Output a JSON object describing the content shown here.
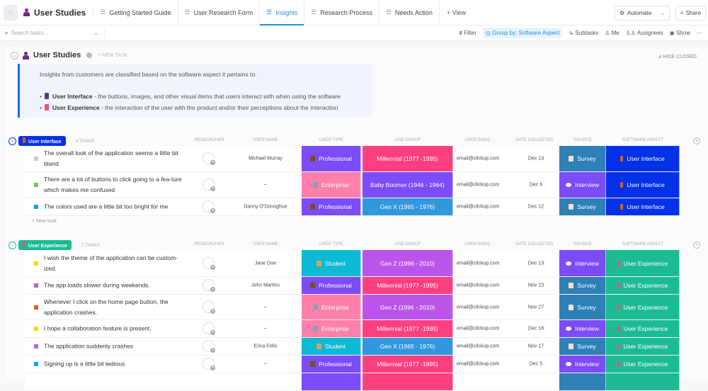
{
  "topbar": {
    "space_name": "User Studies",
    "tabs": [
      {
        "label": "Getting Started Guide",
        "icon": "doc-icon"
      },
      {
        "label": "User Research Form",
        "icon": "form-icon"
      },
      {
        "label": "Insights",
        "icon": "list-icon",
        "active": true
      },
      {
        "label": "Research Process",
        "icon": "board-icon"
      },
      {
        "label": "Needs Action",
        "icon": "list-icon"
      }
    ],
    "add_view": "+ View",
    "automate": "Automate",
    "share": "Share"
  },
  "toolbar": {
    "search_placeholder": "Search tasks...",
    "filter": "Filter",
    "group_by": "Group by: Software Aspect",
    "subtasks": "Subtasks",
    "me": "Me",
    "assignees": "Assignees",
    "show": "Show",
    "more": "···"
  },
  "list": {
    "title": "User Studies",
    "new_task": "+ NEW TASK",
    "hide_closed": "HIDE CLOSED",
    "description": {
      "intro": "Insights from customers are classified based on the software aspect it pertains to.",
      "items": [
        {
          "term": "User Interface",
          "text": " - the buttons, images, and other visual items that users interact with when using the software"
        },
        {
          "term": "User Experience",
          "text": " - the interaction of the user with the product and/or their perceptions about the interaction"
        }
      ]
    }
  },
  "columns": [
    "RESEARCHER",
    "USER NAME",
    "USER TYPE",
    "AGE GROUP",
    "USER EMAIL",
    "DATE COLLECTED",
    "SOURCE",
    "SOFTWARE ASPECT"
  ],
  "colors": {
    "Professional": "#7b4cf8",
    "Enterprise": "#ff7fab",
    "Student": "#0cbad4",
    "Millennial (1977 -1995)": "#fe3f7f",
    "Baby Boomer (1946 - 1964)": "#7b4cf8",
    "Gen X (1965 - 1976)": "#3397dd",
    "Gen Z (1996 - 2010)": "#bb55ea",
    "Survey": "#2e80b6",
    "Interview": "#7b4cf8",
    "User Interface": "#0231e8",
    "User Experience": "#1bbc93"
  },
  "groups": [
    {
      "name": "User Interface",
      "count": "3 TASKS",
      "color": "#0231e8",
      "new_task": "+ New task",
      "rows": [
        {
          "title": "The overall look of the application seems a little bit bland",
          "status": "#cccccc",
          "user": "Michael Murray",
          "type": "Professional",
          "age": "Millennial (1977 -1995)",
          "email": "email@clickup.com",
          "date": "Dec 13",
          "source": "Survey",
          "aspect": "User Interface"
        },
        {
          "title": "There are a lot of buttons to click going to a fea-ture which makes me confused",
          "status": "#6bc950",
          "user": "–",
          "type": "Enterprise",
          "age": "Baby Boomer (1946 - 1964)",
          "email": "email@clickup.com",
          "date": "Dec 6",
          "source": "Interview",
          "aspect": "User Interface"
        },
        {
          "title": "The colors used are a little bit too bright for me",
          "status": "#0aa5f5",
          "user": "Danny O'Donoghue",
          "type": "Professional",
          "age": "Gen X (1965 - 1976)",
          "email": "email@clickup.com",
          "date": "Dec 12",
          "source": "Survey",
          "aspect": "User Interface"
        }
      ]
    },
    {
      "name": "User Experience",
      "count": "7 TASKS",
      "color": "#1bbc93",
      "rows": [
        {
          "title": "I wish the theme of the application can be custom-ized.",
          "status": "#f9d900",
          "user": "Jane Doe",
          "type": "Student",
          "age": "Gen Z (1996 - 2010)",
          "email": "email@clickup.com",
          "date": "Dec 13",
          "source": "Interview",
          "aspect": "User Experience"
        },
        {
          "title": "The app loads slower during weekends.",
          "status": "#b660e0",
          "user": "John Martins",
          "type": "Professional",
          "age": "Millennial (1977 -1995)",
          "email": "email@clickup.com",
          "date": "Nov 23",
          "source": "Survey",
          "aspect": "User Experience"
        },
        {
          "title": "Whenever I click on the home page button, the application crashes.",
          "status": "#f05a1a",
          "user": "–",
          "type": "Enterprise",
          "age": "Gen Z (1996 - 2010)",
          "email": "email@clickup.com",
          "date": "Nov 27",
          "source": "Survey",
          "aspect": "User Experience"
        },
        {
          "title": "I hope a collaboration feature is present.",
          "status": "#f9d900",
          "user": "–",
          "type": "Enterprise",
          "age": "Millennial (1977 -1995)",
          "email": "email@clickup.com",
          "date": "Dec 18",
          "source": "Interview",
          "aspect": "User Experience"
        },
        {
          "title": "The application suddenly crashes",
          "status": "#b660e0",
          "user": "Erica Felix",
          "type": "Student",
          "age": "Gen X (1965 - 1976)",
          "email": "email@clickup.com",
          "date": "Nov 17",
          "source": "Survey",
          "aspect": "User Experience"
        },
        {
          "title": "Signing up is a little bit tedious",
          "status": "#0aa5f5",
          "user": "–",
          "type": "Professional",
          "age": "Millennial (1977 -1995)",
          "email": "email@clickup.com",
          "date": "Dec 5",
          "source": "Interview",
          "aspect": "User Experience"
        }
      ]
    }
  ]
}
